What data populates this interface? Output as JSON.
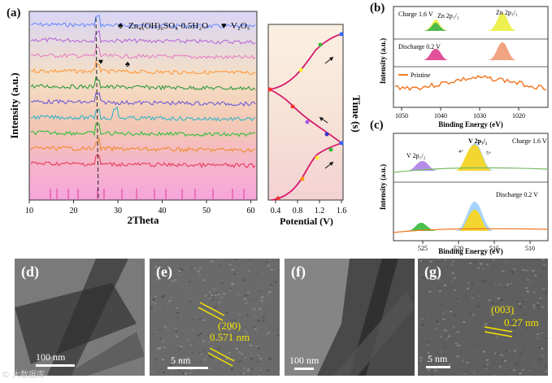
{
  "panel_a": {
    "label": "(a)",
    "xrd": {
      "xlabel": "2Theta",
      "ylabel": "Intensity (a.u.)",
      "xticks": [
        "10",
        "20",
        "30",
        "40",
        "50",
        "60"
      ],
      "legend_zn": "Zn₄(OH)₆SO₄·0.5H₂O",
      "legend_v": "V₂O₅",
      "zn_symbol": "♠",
      "v_symbol": "♥"
    },
    "potential": {
      "xlabel": "Potential (V)",
      "ylabel": "Time (s)",
      "xticks": [
        "0.4",
        "0.8",
        "1.2",
        "1.6"
      ]
    }
  },
  "panel_b": {
    "label": "(b)",
    "ylabel": "Intensity (a.u.)",
    "xlabel": "Binding Energy (eV)",
    "xticks": [
      "1050",
      "1040",
      "1030",
      "1020"
    ],
    "series": [
      "Charge 1.6 V",
      "Discharge 0.2 V",
      "Pristine"
    ],
    "zn_2p12": "Zn 2p₁/₂",
    "zn_2p32": "Zn 2p₃/₂"
  },
  "panel_c": {
    "label": "(c)",
    "ylabel": "Intensity (a.u.)",
    "xlabel": "Binding Energy (eV)",
    "xticks": [
      "525",
      "520",
      "515",
      "510"
    ],
    "series": [
      "Charge 1.6 V",
      "Discharge 0.2 V"
    ],
    "v_2p12": "V 2p₁/₂",
    "v_2p32": "V 2p₃/₂",
    "v4": "4+",
    "v5": "5+"
  },
  "tem": {
    "d": {
      "label": "(d)",
      "scale": "100 nm"
    },
    "e": {
      "label": "(e)",
      "scale": "5 nm",
      "plane": "(200)",
      "spacing": "0.571 nm"
    },
    "f": {
      "label": "(f)",
      "scale": "100 nm"
    },
    "g": {
      "label": "(g)",
      "scale": "5 nm",
      "plane": "(003)",
      "spacing": "0.27 nm"
    }
  },
  "watermark": "© 大数据库"
}
